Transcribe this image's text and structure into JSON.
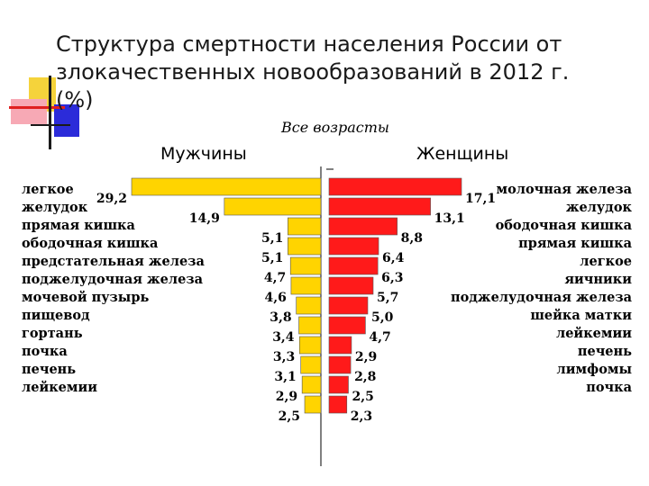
{
  "title": "Структура смертности населения России от злокачественных новообразований в 2012 г. (%)",
  "subtitle": "Все возрасты",
  "colors": {
    "men_bar": "#FFD400",
    "women_bar": "#FF1A1A",
    "deco_yellow": "#F5D33B",
    "deco_blue": "#2B2BD9",
    "deco_pink": "#F7A9B5"
  },
  "chart_data": [
    {
      "type": "bar",
      "orientation": "horizontal",
      "direction": "left",
      "group": "Мужчины",
      "categories": [
        "легкое",
        "желудок",
        "прямая кишка",
        "ободочная кишка",
        "предстательная железа",
        "поджелудочная железа",
        "мочевой пузырь",
        "пищевод",
        "гортань",
        "почка",
        "печень",
        "лейкемии"
      ],
      "values": [
        29.2,
        14.9,
        5.1,
        5.1,
        4.7,
        4.6,
        3.8,
        3.4,
        3.3,
        3.1,
        2.9,
        2.5
      ],
      "value_labels": [
        "29,2",
        "14,9",
        "5,1",
        "5,1",
        "4,7",
        "4,6",
        "3,8",
        "3,4",
        "3,3",
        "3,1",
        "2,9",
        "2,5"
      ]
    },
    {
      "type": "bar",
      "orientation": "horizontal",
      "direction": "right",
      "group": "Женщины",
      "categories": [
        "молочная железа",
        "желудок",
        "ободочная кишка",
        "прямая кишка",
        "легкое",
        "яичники",
        "поджелудочная железа",
        "шейка матки",
        "лейкемии",
        "печень",
        "лимфомы",
        "почка"
      ],
      "values": [
        17.1,
        13.1,
        8.8,
        6.4,
        6.3,
        5.7,
        5.0,
        4.7,
        2.9,
        2.8,
        2.5,
        2.3
      ],
      "value_labels": [
        "17,1",
        "13,1",
        "8,8",
        "6,4",
        "6,3",
        "5,7",
        "5,0",
        "4,7",
        "2,9",
        "2,8",
        "2,5",
        "2,3"
      ]
    }
  ]
}
